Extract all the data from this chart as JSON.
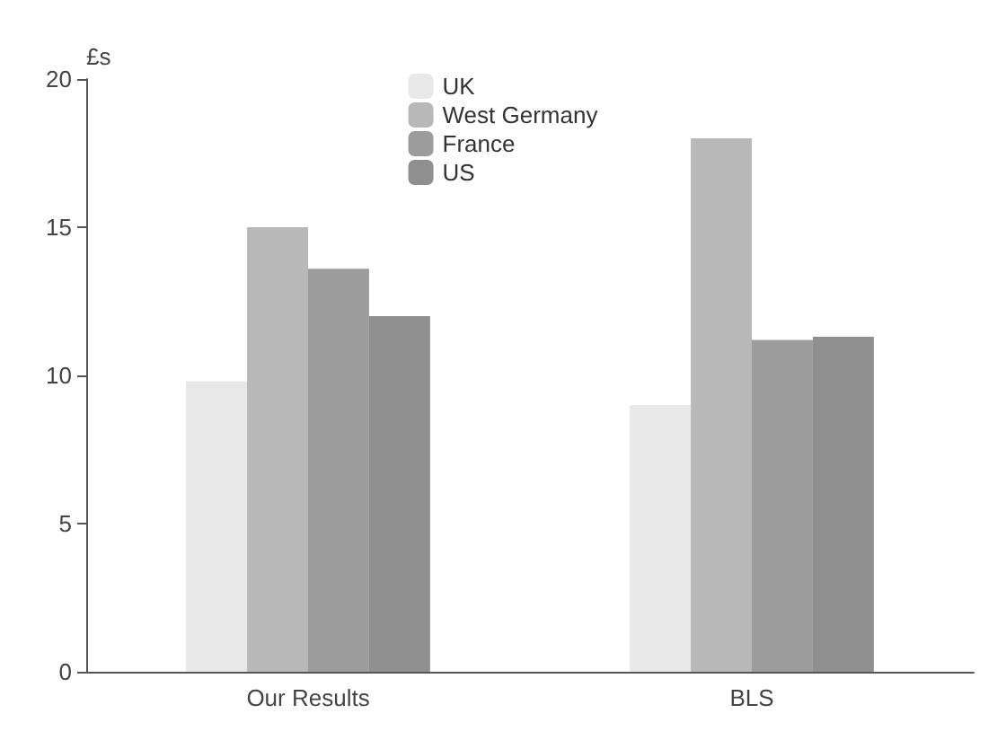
{
  "chart_data": {
    "type": "bar",
    "ylabel": "£s",
    "categories": [
      "Our Results",
      "BLS"
    ],
    "series": [
      {
        "name": "UK",
        "color": "#e8e8e8",
        "values": [
          9.8,
          9
        ]
      },
      {
        "name": "West Germany",
        "color": "#b8b8b8",
        "values": [
          15,
          18
        ]
      },
      {
        "name": "France",
        "color": "#9c9c9c",
        "values": [
          13.6,
          11.2
        ]
      },
      {
        "name": "US",
        "color": "#8f8f8f",
        "values": [
          12,
          11.3
        ]
      }
    ],
    "ylim": [
      0,
      20
    ],
    "yticks": [
      0,
      5,
      10,
      15,
      20
    ],
    "grid": false,
    "legend": "top"
  }
}
